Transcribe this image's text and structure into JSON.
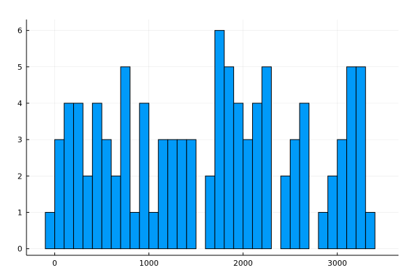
{
  "chart_data": {
    "type": "bar",
    "title": "",
    "xlabel": "",
    "ylabel": "",
    "bin_width": 100,
    "bin_starts": [
      -100,
      0,
      100,
      200,
      300,
      400,
      500,
      600,
      700,
      800,
      900,
      1000,
      1100,
      1200,
      1300,
      1400,
      1500,
      1600,
      1700,
      1800,
      1900,
      2000,
      2100,
      2200,
      2300,
      2400,
      2500,
      2600,
      2700,
      2800,
      2900,
      3000,
      3100,
      3200,
      3300
    ],
    "values": [
      1,
      3,
      4,
      4,
      2,
      4,
      3,
      2,
      5,
      1,
      4,
      1,
      3,
      3,
      3,
      3,
      0,
      2,
      6,
      5,
      4,
      3,
      4,
      5,
      0,
      2,
      3,
      4,
      0,
      1,
      2,
      3,
      5,
      5,
      1
    ],
    "xlim": [
      -300,
      3650
    ],
    "ylim": [
      -0.18,
      6.3
    ],
    "x_ticks": [
      0,
      1000,
      2000,
      3000
    ],
    "y_ticks": [
      0,
      1,
      2,
      3,
      4,
      5,
      6
    ],
    "grid": true,
    "legend": "none",
    "bar_color": "#009af9"
  }
}
